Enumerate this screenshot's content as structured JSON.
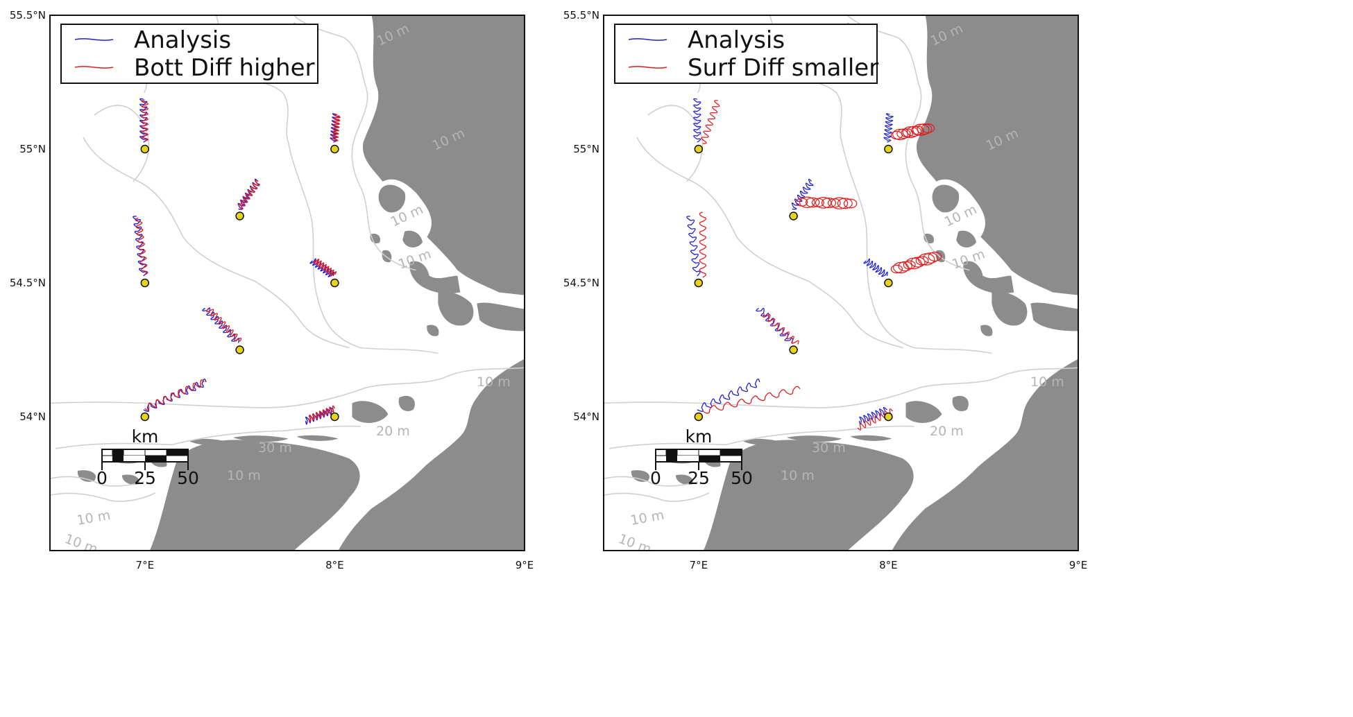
{
  "colors": {
    "land": "#8c8c8c",
    "contour": "#cfcfcf",
    "analysis": "#1f1fd6",
    "experiment": "#e21b1b",
    "station": "#e6d21f"
  },
  "panels": [
    {
      "x_ticks": [
        "7°E",
        "8°E",
        "9°E"
      ],
      "y_ticks": [
        "55.5°N",
        "55°N",
        "54.5°N",
        "54°N"
      ],
      "legend": [
        {
          "label": "Analysis",
          "color": "#1f1fd6"
        },
        {
          "label": "Bott Diff higher",
          "color": "#e21b1b"
        }
      ],
      "contour_labels": [
        "10 m",
        "10 m",
        "10 m",
        "10 m",
        "10 m",
        "10 m",
        "20 m",
        "30 m",
        "10 m",
        "10 m",
        "10 m"
      ],
      "scale_bar": {
        "unit": "km",
        "labels": [
          "0",
          "25",
          "50"
        ]
      }
    },
    {
      "x_ticks": [
        "7°E",
        "8°E",
        "9°E"
      ],
      "y_ticks": [
        "55.5°N",
        "55°N",
        "54.5°N",
        "54°N"
      ],
      "legend": [
        {
          "label": "Analysis",
          "color": "#1f1fd6"
        },
        {
          "label": "Surf Diff smaller",
          "color": "#e21b1b"
        }
      ],
      "contour_labels": [
        "10 m",
        "10 m",
        "10 m",
        "10 m",
        "10 m",
        "10 m",
        "20 m",
        "30 m",
        "10 m",
        "10 m",
        "10 m"
      ],
      "scale_bar": {
        "unit": "km",
        "labels": [
          "0",
          "25",
          "50"
        ]
      }
    }
  ]
}
